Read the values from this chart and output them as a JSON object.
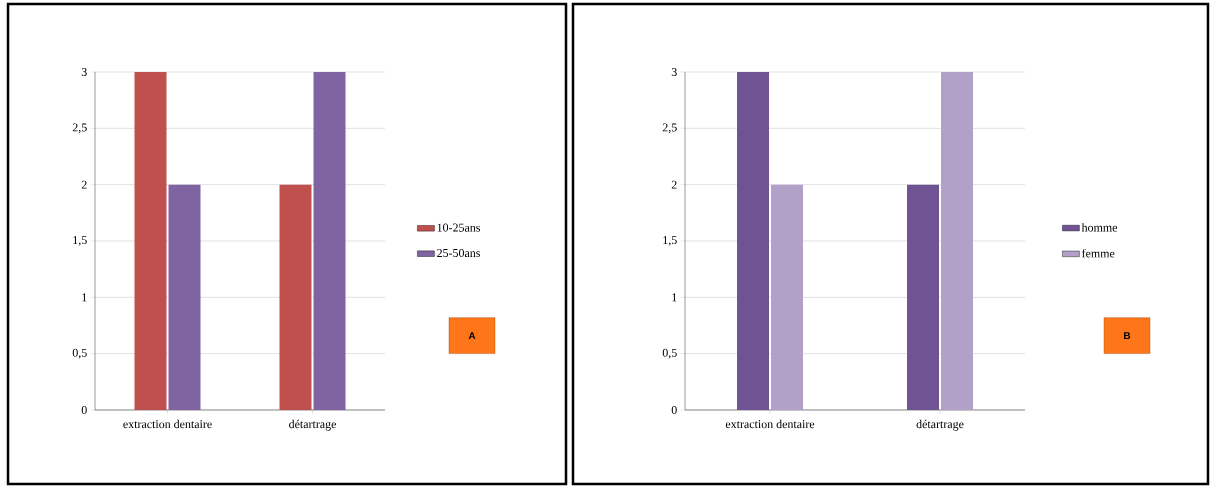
{
  "chart_data": [
    {
      "type": "bar",
      "categories": [
        "extraction dentaire",
        "détartrage"
      ],
      "series": [
        {
          "name": "10-25ans",
          "color": "#c0504d",
          "values": [
            3,
            2
          ]
        },
        {
          "name": "25-50ans",
          "color": "#8064a2",
          "values": [
            2,
            3
          ]
        }
      ],
      "ylim": [
        0,
        3
      ],
      "yticks": [
        0,
        {
          "value": 0.5,
          "label": "0,5"
        },
        1,
        {
          "value": 1.5,
          "label": "1,5"
        },
        2,
        {
          "value": 2.5,
          "label": "2,5"
        },
        3
      ],
      "grid": "y",
      "legend": "right",
      "annotations": [
        "A"
      ]
    },
    {
      "type": "bar",
      "categories": [
        "extraction dentaire",
        "détartrage"
      ],
      "series": [
        {
          "name": "homme",
          "color": "#6f5393",
          "values": [
            3,
            2
          ]
        },
        {
          "name": "femme",
          "color": "#b1a0c7",
          "values": [
            2,
            3
          ]
        }
      ],
      "ylim": [
        0,
        3
      ],
      "yticks": [
        0,
        {
          "value": 0.5,
          "label": "0,5"
        },
        1,
        {
          "value": 1.5,
          "label": "1,5"
        },
        2,
        {
          "value": 2.5,
          "label": "2,5"
        },
        3
      ],
      "grid": "y",
      "legend": "right",
      "annotations": [
        "B"
      ]
    }
  ]
}
